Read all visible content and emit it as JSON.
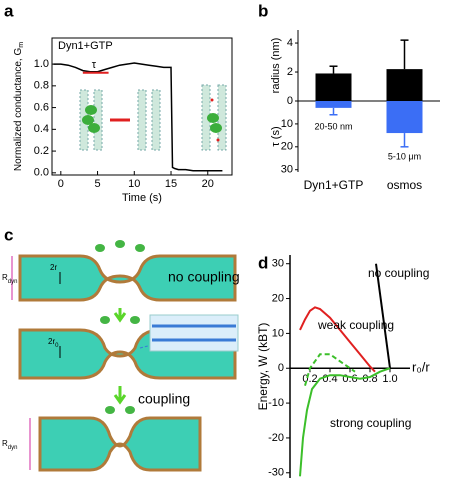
{
  "panel_labels": [
    "a",
    "b",
    "c",
    "d"
  ],
  "diagram": {
    "labels": [
      "no coupling",
      "coupling"
    ],
    "annotations": [
      "R",
      "dyn",
      "2r",
      "2r",
      "0",
      "R",
      "dyn"
    ]
  },
  "chart_data": [
    {
      "type": "line",
      "xlabel": "Time (s)",
      "ylabel": "Normalized conductance, G",
      "ylabel_sub": "m",
      "annotations": [
        "Dyn1+GTP",
        "τ"
      ],
      "color": "#000000",
      "x": [
        -1,
        0,
        1,
        2,
        3,
        4,
        5,
        6,
        7,
        8,
        9,
        10,
        11,
        12,
        13,
        14,
        15,
        15.2,
        15.5,
        16,
        17,
        18,
        19,
        20,
        21,
        22
      ],
      "values": [
        1.0,
        1.0,
        0.99,
        0.97,
        0.94,
        0.93,
        0.93,
        0.95,
        0.97,
        0.99,
        1.0,
        1.01,
        1.0,
        0.99,
        0.98,
        0.97,
        0.97,
        0.05,
        0.04,
        0.03,
        0.03,
        0.02,
        0.02,
        0.02,
        0.02,
        0.02
      ],
      "xlim": [
        -1.2,
        23.3
      ],
      "xticks": [
        0,
        5,
        10,
        15,
        20
      ],
      "ylim": [
        -0.02,
        1.24
      ],
      "yticks": [
        {
          "value": 0,
          "label": "0.0"
        },
        0.2,
        0.4,
        0.6,
        0.8,
        {
          "value": 1,
          "label": "1.0"
        }
      ]
    },
    {
      "type": "bar",
      "categories": [
        "Dyn1+GTP",
        "osmos"
      ],
      "series": [
        {
          "name": "radius (nm)",
          "color": "#000000",
          "values": [
            1.9,
            2.2
          ],
          "errors": [
            0.5,
            2.0
          ]
        },
        {
          "name": "τ (s)",
          "color": "#3b6ef5",
          "axis": "y2",
          "values": [
            3,
            14
          ],
          "errors": [
            3,
            6
          ]
        }
      ],
      "annotations": [
        "20-50 nm",
        "5-10 μm"
      ],
      "ylim": [
        0,
        4.9
      ],
      "yticks": [
        0,
        2,
        4
      ],
      "y2lim": [
        0,
        31
      ],
      "y2ticks": [
        0,
        10,
        20,
        30
      ]
    },
    {
      "type": "line",
      "xlabel": "r₀/r",
      "ylabel": "Energy, W (kBT)",
      "series": [
        {
          "name": "no coupling",
          "color": "#000000",
          "x": [
            0.86,
            1.0
          ],
          "values": [
            30,
            0
          ]
        },
        {
          "name": "weak coupling",
          "color": "#e02020",
          "x": [
            0.1,
            0.15,
            0.2,
            0.25,
            0.3,
            0.4,
            0.5,
            0.6,
            0.7,
            0.8,
            0.85
          ],
          "values": [
            11,
            14,
            16.5,
            17.5,
            17,
            14.5,
            11,
            7.5,
            4,
            0.5,
            -1
          ]
        },
        {
          "name": "strong coupling",
          "color": "#3cbf2a",
          "x": [
            0.1,
            0.13,
            0.17,
            0.22,
            0.3,
            0.4,
            0.5,
            0.6,
            0.7,
            0.8,
            0.9,
            1.0
          ],
          "values": [
            -31,
            -20,
            -12,
            -6,
            -3,
            -2,
            -2,
            -2.5,
            -3,
            -2.5,
            -1,
            0
          ]
        },
        {
          "color": "#3cbf2a",
          "dash": true,
          "x": [
            0.15,
            0.2,
            0.3,
            0.4,
            0.5,
            0.6,
            0.65
          ],
          "values": [
            -5,
            0,
            4,
            4,
            2,
            0,
            -1
          ]
        }
      ],
      "xlim": [
        0,
        1.2
      ],
      "xticks": [
        0.2,
        0.4,
        0.6,
        0.8,
        {
          "value": 1,
          "label": "1.0"
        }
      ],
      "ylim": [
        -31.5,
        32.5
      ],
      "yticks": [
        -30,
        -20,
        -10,
        0,
        10,
        20,
        30
      ]
    }
  ]
}
